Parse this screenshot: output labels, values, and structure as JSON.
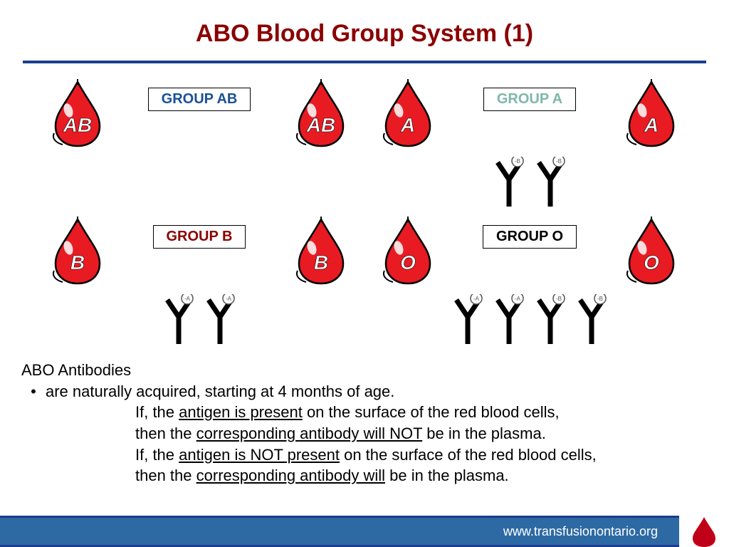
{
  "title": {
    "text": "ABO Blood Group System (1)",
    "color": "#8b0000",
    "fontsize": 34
  },
  "divider_color": "#1a3d8f",
  "groups": {
    "ab": {
      "label": "GROUP AB",
      "label_color": "#1a5099",
      "drop_text": "AB",
      "antibodies": []
    },
    "a": {
      "label": "GROUP A",
      "label_color": "#7eb8a8",
      "drop_text": "A",
      "antibodies": [
        "-B",
        "-B"
      ]
    },
    "b": {
      "label": "GROUP B",
      "label_color": "#8b0000",
      "drop_text": "B",
      "antibodies": [
        "-A",
        "-A"
      ]
    },
    "o": {
      "label": "GROUP O",
      "label_color": "#000000",
      "drop_text": "O",
      "antibodies": [
        "-A",
        "-A",
        "-B",
        "-B"
      ]
    }
  },
  "drop": {
    "fill": "#e81b23",
    "outline": "#000000",
    "highlight": "#ffffff",
    "text_color": "#ffffff",
    "text_outline": "#000000"
  },
  "antibody": {
    "stroke": "#000000",
    "circle_fill": "#ffffff",
    "circle_stroke": "#555555",
    "label_color": "#555555"
  },
  "body": {
    "heading": "ABO Antibodies",
    "bullet": "are naturally acquired, starting at 4 months of age.",
    "lines": [
      {
        "pre": "If, the ",
        "u": "antigen is present",
        "post": " on the surface of the red blood cells,"
      },
      {
        "pre": "then the ",
        "u": "corresponding antibody will NOT",
        "post": " be in the plasma."
      },
      {
        "pre": "If, the ",
        "u": "antigen is NOT present",
        "post": " on the surface of the red blood cells,"
      },
      {
        "pre": "then the ",
        "u": "corresponding antibody will",
        "post": " be in the plasma."
      }
    ]
  },
  "footer": {
    "url": "www.transfusionontario.org",
    "bar_color": "#2d6aa3",
    "bar_border": "#1a3d8f",
    "drop_color": "#c00018"
  }
}
